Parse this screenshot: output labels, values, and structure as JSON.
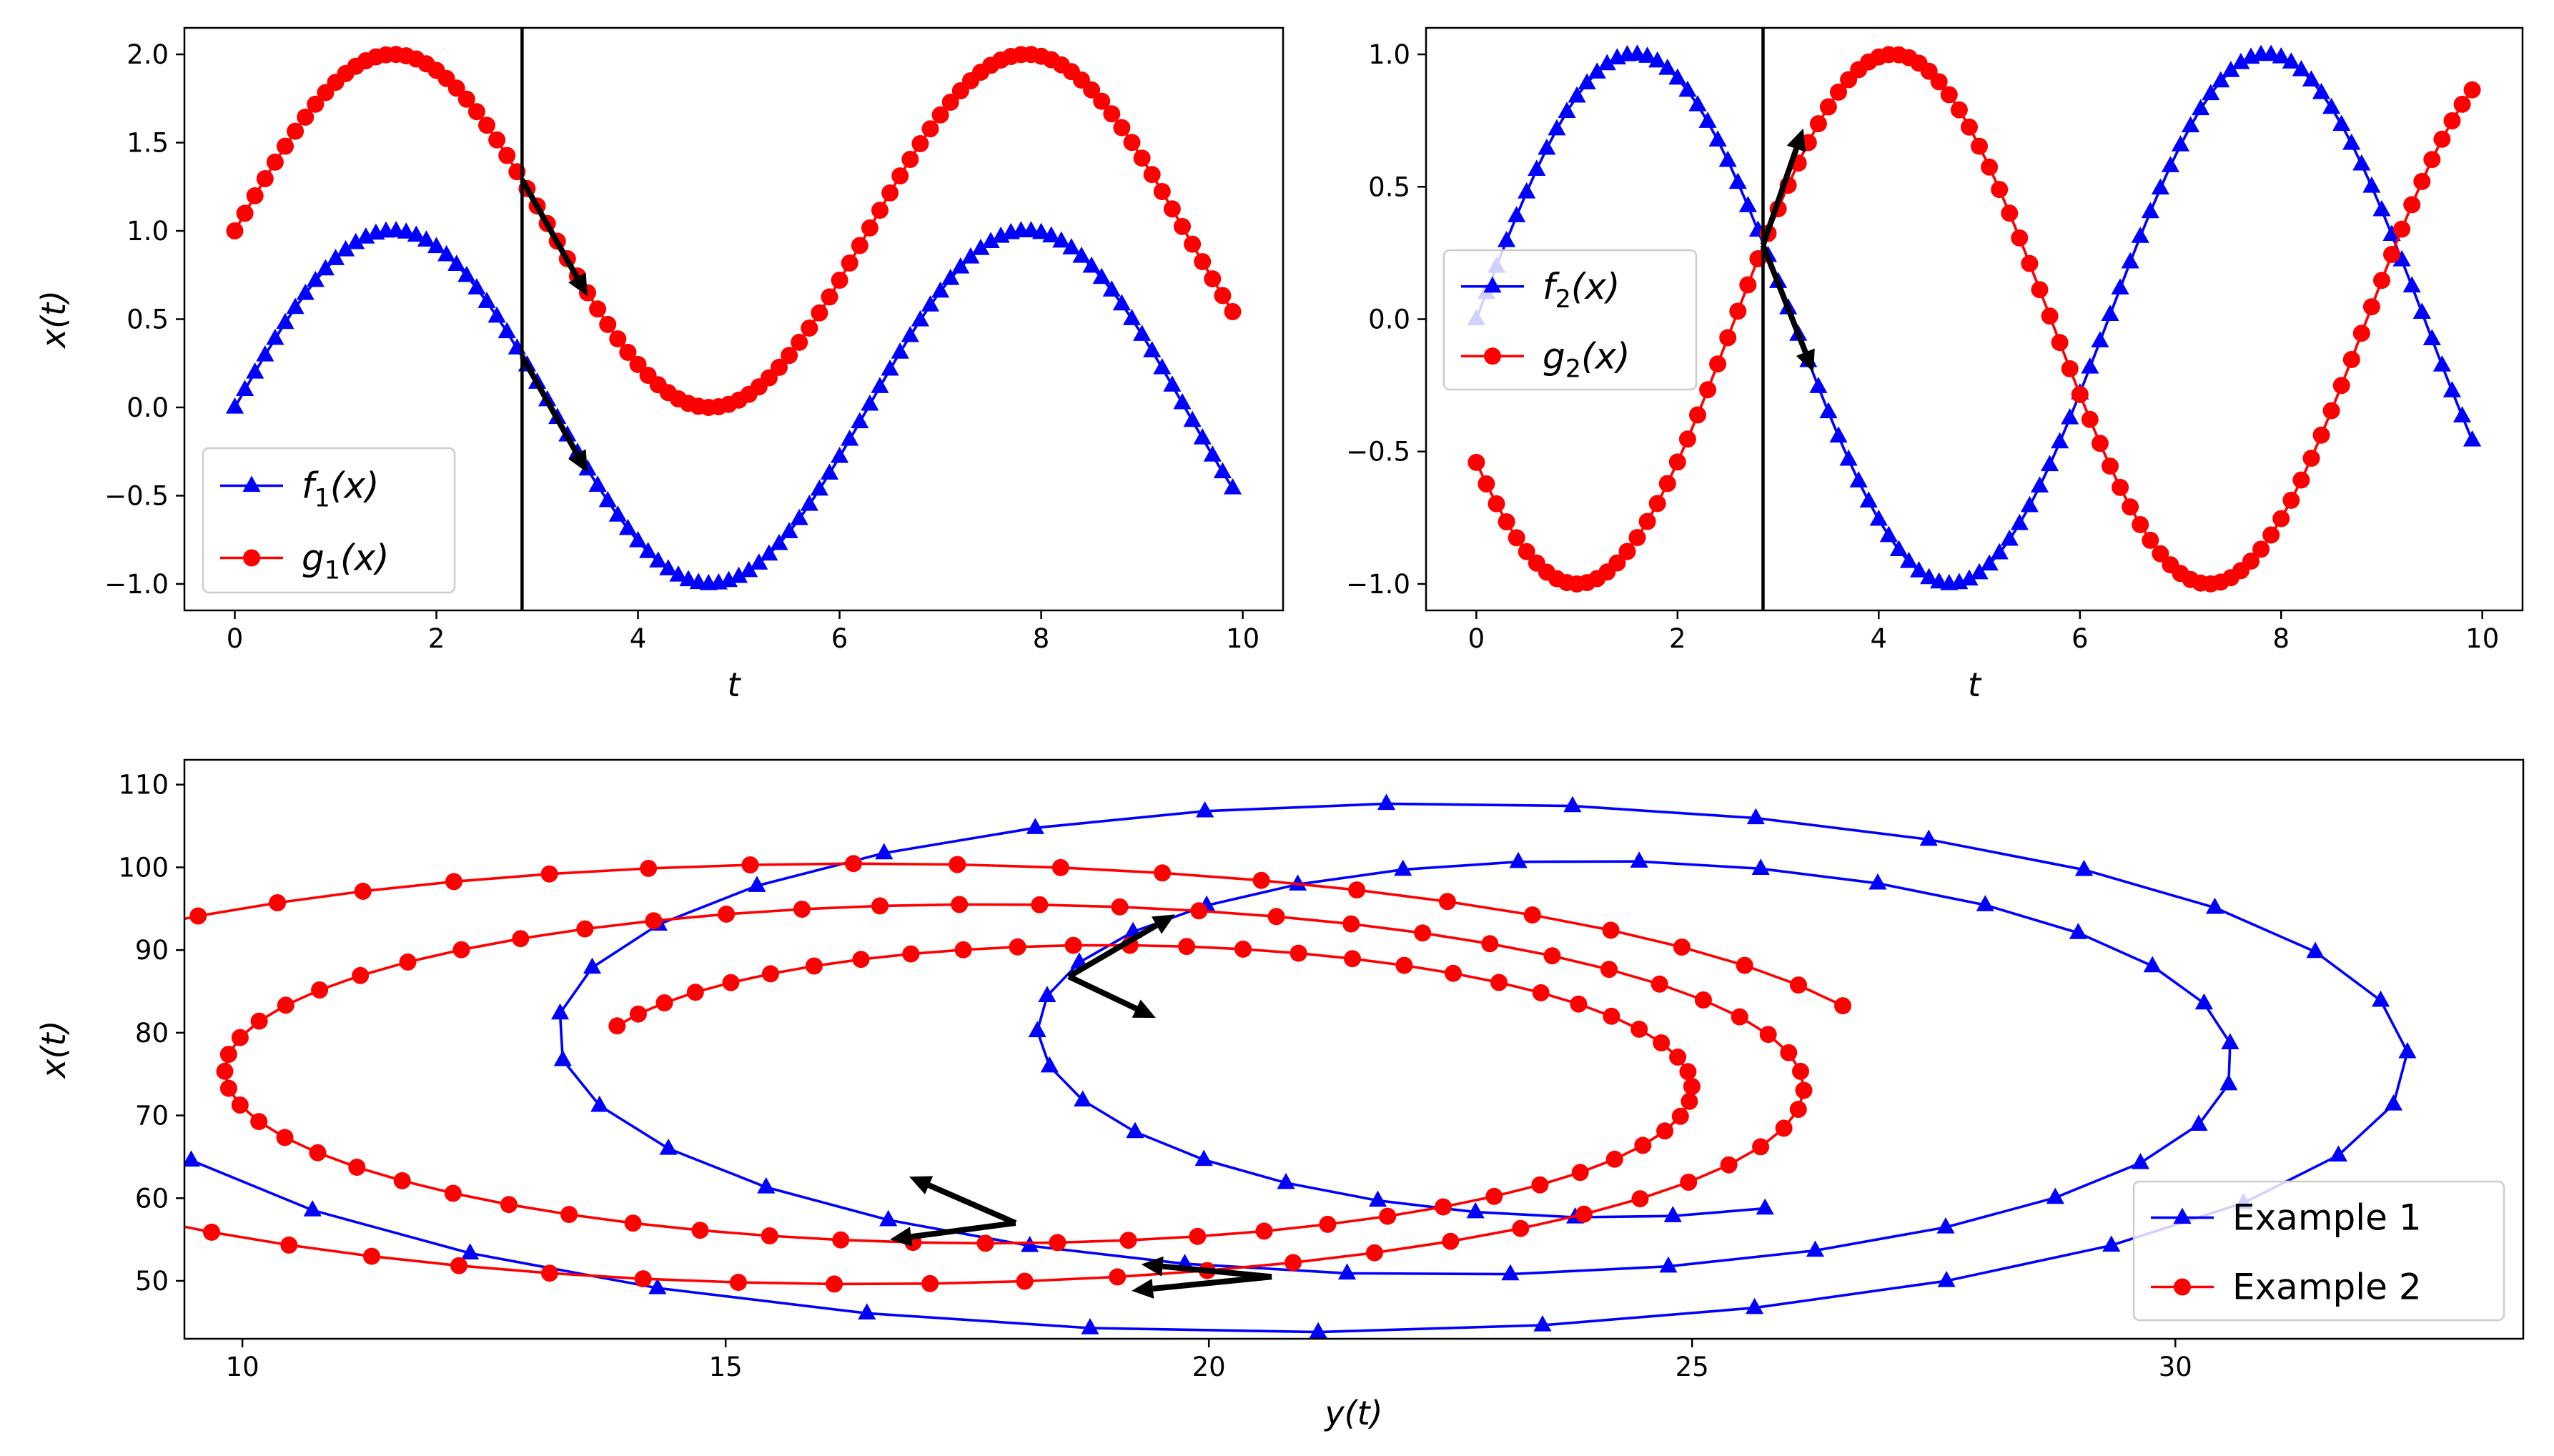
{
  "chart_data": [
    {
      "type": "line",
      "panel": "top-left",
      "xlabel": "t",
      "ylabel": "x(t)",
      "xlim": [
        -0.5,
        10.4
      ],
      "ylim": [
        -1.15,
        2.15
      ],
      "xticks": [
        0,
        2,
        4,
        6,
        8,
        10
      ],
      "yticks": [
        -1.0,
        -0.5,
        0.0,
        0.5,
        1.0,
        1.5,
        2.0
      ],
      "x_range": {
        "start": 0,
        "stop": 10,
        "step": 0.1
      },
      "vline_x": 2.85,
      "series": [
        {
          "name": "f_1(x)",
          "label_main": "f",
          "label_sub": "1",
          "label_arg": "(x)",
          "formula": "sin(t)",
          "color": "#0000ff",
          "marker": "triangle"
        },
        {
          "name": "g_1(x)",
          "label_main": "g",
          "label_sub": "1",
          "label_arg": "(x)",
          "formula": "sin(t)+1",
          "color": "#ff0000",
          "marker": "circle"
        }
      ],
      "arrows": [
        {
          "x0": 2.85,
          "y0": 1.29,
          "x1": 3.5,
          "y1": 0.63
        },
        {
          "x0": 2.85,
          "y0": 0.29,
          "x1": 3.5,
          "y1": -0.37
        }
      ],
      "legend": "lower-left"
    },
    {
      "type": "line",
      "panel": "top-right",
      "xlabel": "t",
      "ylabel": "",
      "xlim": [
        -0.5,
        10.4
      ],
      "ylim": [
        -1.1,
        1.1
      ],
      "xticks": [
        0,
        2,
        4,
        6,
        8,
        10
      ],
      "yticks": [
        -1.0,
        -0.5,
        0.0,
        0.5,
        1.0
      ],
      "x_range": {
        "start": 0,
        "stop": 10,
        "step": 0.1
      },
      "vline_x": 2.85,
      "series": [
        {
          "name": "f_2(x)",
          "label_main": "f",
          "label_sub": "2",
          "label_arg": "(x)",
          "formula": "sin(t)",
          "color": "#0000ff",
          "marker": "triangle"
        },
        {
          "name": "g_2(x)",
          "label_main": "g",
          "label_sub": "2",
          "label_arg": "(x)",
          "formula": "sin(t-2.57)",
          "color": "#ff0000",
          "marker": "circle"
        }
      ],
      "arrows": [
        {
          "x0": 2.85,
          "y0": 0.28,
          "x1": 3.25,
          "y1": 0.72
        },
        {
          "x0": 2.85,
          "y0": 0.28,
          "x1": 3.35,
          "y1": -0.2
        }
      ],
      "legend": "center-left"
    },
    {
      "type": "line",
      "panel": "bottom",
      "xlabel": "y(t)",
      "ylabel": "x(t)",
      "xlim": [
        9.4,
        33.6
      ],
      "ylim": [
        43,
        113
      ],
      "xticks": [
        10,
        15,
        20,
        25,
        30
      ],
      "yticks": [
        50,
        60,
        70,
        80,
        90,
        100,
        110
      ],
      "series": [
        {
          "name": "Example 1",
          "color": "#0000ff",
          "marker": "triangle",
          "spiral": {
            "cx_start": 20.9,
            "cx_end": 24.45,
            "cy_start": 77.5,
            "cy_end": 77.5,
            "rx_start": 12.3,
            "rx_end": 4.7,
            "ry_start": 35.0,
            "ry_end": 19.5,
            "theta_start": 3.52,
            "theta_end": 17.56,
            "points": 72
          }
        },
        {
          "name": "Example 2",
          "color": "#ff0000",
          "marker": "circle",
          "spiral": {
            "cx_start": 15.85,
            "cx_end": 18.9,
            "cy_start": 73.8,
            "cy_end": 73.8,
            "rx_start": 11.4,
            "rx_end": 5.6,
            "ry_start": 27.6,
            "ry_end": 15.9,
            "theta_start": 0.35,
            "theta_end": 15.25,
            "points": 150
          }
        }
      ],
      "arrows": [
        {
          "x0": 18.55,
          "y0": 86.8,
          "x1": 19.65,
          "y1": 94.3
        },
        {
          "x0": 18.55,
          "y0": 86.8,
          "x1": 19.45,
          "y1": 81.8
        },
        {
          "x0": 18.0,
          "y0": 57.0,
          "x1": 16.9,
          "y1": 62.6
        },
        {
          "x0": 18.0,
          "y0": 57.0,
          "x1": 16.7,
          "y1": 55.0
        },
        {
          "x0": 20.65,
          "y0": 50.5,
          "x1": 19.3,
          "y1": 52.0
        },
        {
          "x0": 20.65,
          "y0": 50.5,
          "x1": 19.2,
          "y1": 48.8
        }
      ],
      "legend": "lower-right"
    }
  ]
}
